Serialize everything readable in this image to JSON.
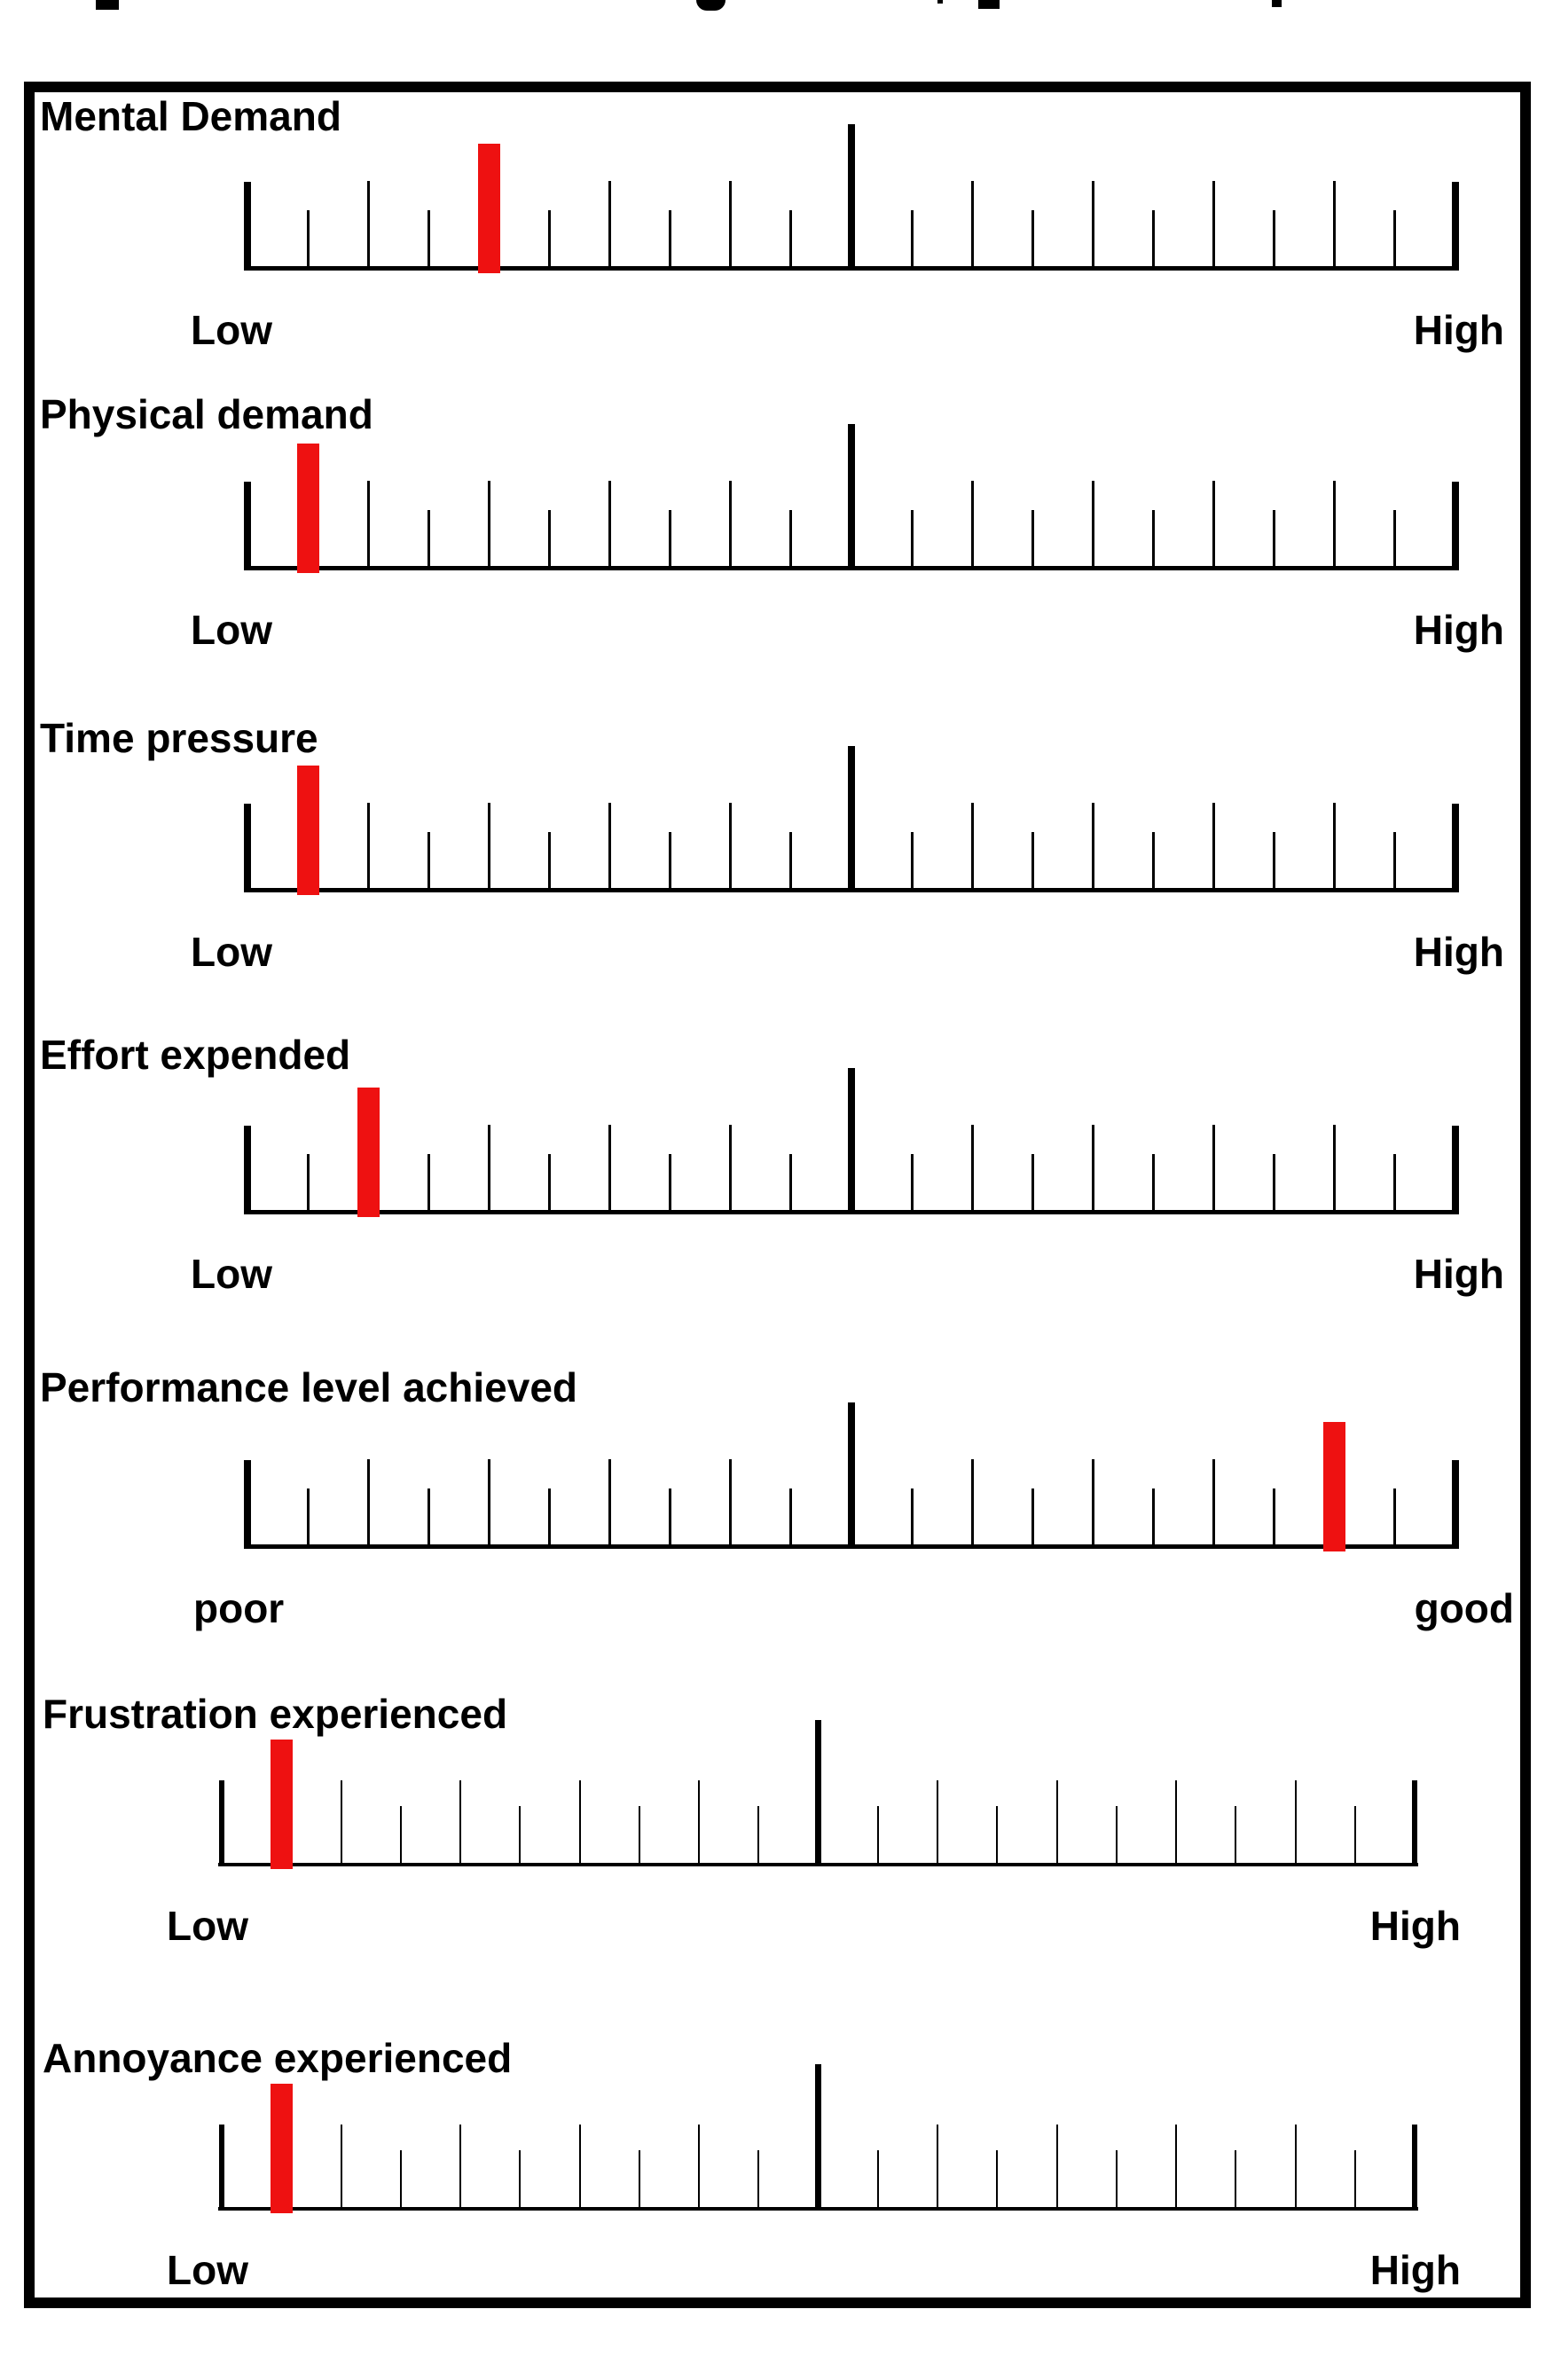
{
  "figure": {
    "type": "rating-scale-questionnaire",
    "marker_color": "#ee1111",
    "ink_color": "#000000",
    "background_color": "#ffffff"
  },
  "scales": [
    {
      "label": "Mental Demand",
      "left_label": "Low",
      "right_label": "High",
      "min": 0,
      "max": 20,
      "ticks": 21,
      "value": 4
    },
    {
      "label": "Physical demand",
      "left_label": "Low",
      "right_label": "High",
      "min": 0,
      "max": 20,
      "ticks": 21,
      "value": 1
    },
    {
      "label": "Time pressure",
      "left_label": "Low",
      "right_label": "High",
      "min": 0,
      "max": 20,
      "ticks": 21,
      "value": 1
    },
    {
      "label": "Effort expended",
      "left_label": "Low",
      "right_label": "High",
      "min": 0,
      "max": 20,
      "ticks": 21,
      "value": 2
    },
    {
      "label": "Performance level achieved",
      "left_label": "poor",
      "right_label": "good",
      "min": 0,
      "max": 20,
      "ticks": 21,
      "value": 18
    },
    {
      "label": "Frustration experienced",
      "left_label": "Low",
      "right_label": "High",
      "min": 0,
      "max": 20,
      "ticks": 21,
      "value": 1
    },
    {
      "label": "Annoyance experienced",
      "left_label": "Low",
      "right_label": "High",
      "min": 0,
      "max": 20,
      "ticks": 21,
      "value": 1
    }
  ]
}
